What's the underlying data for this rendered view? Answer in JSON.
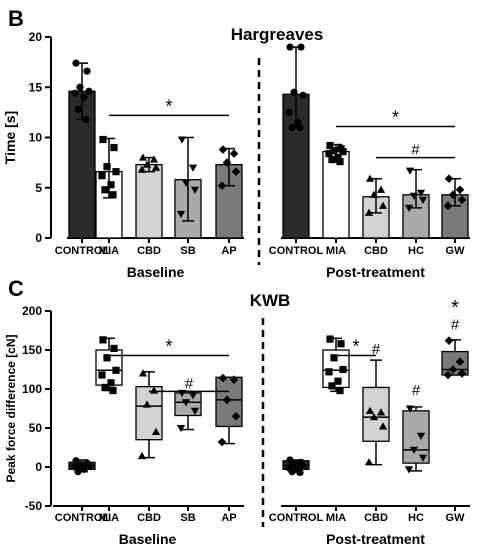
{
  "figure": {
    "panel_b_letter": "B",
    "panel_c_letter": "C"
  },
  "chart_data": [
    {
      "type": "bar",
      "title": "Hargreaves",
      "ylabel": "Time [s]",
      "ylim": [
        0,
        20
      ],
      "yticks": [
        0,
        5,
        10,
        15,
        20
      ],
      "groups": [
        {
          "label": "Baseline",
          "categories": [
            "CONTROL",
            "MIA",
            "CBD",
            "SB",
            "AP"
          ]
        },
        {
          "label": "Post-treatment",
          "categories": [
            "CONTROL",
            "MIA",
            "CBD",
            "HC",
            "GW"
          ]
        }
      ],
      "series": [
        {
          "group": "Baseline",
          "category": "CONTROL",
          "mean": 14.6,
          "sd_low": 11.8,
          "sd_high": 17.4,
          "fill": "#2b2b2b",
          "marker": "circle",
          "points": [
            17.4,
            16.6,
            15.0,
            14.6,
            14.4,
            14.0,
            12.8,
            11.8
          ]
        },
        {
          "group": "Baseline",
          "category": "MIA",
          "mean": 6.6,
          "sd_low": 4.0,
          "sd_high": 9.9,
          "fill": "#ffffff",
          "marker": "square",
          "points": [
            9.8,
            9.0,
            7.1,
            6.6,
            6.2,
            5.3,
            4.8,
            4.3
          ]
        },
        {
          "group": "Baseline",
          "category": "CBD",
          "mean": 7.3,
          "sd_low": 6.6,
          "sd_high": 8.0,
          "fill": "#d3d3d3",
          "marker": "triangle",
          "points": [
            8.0,
            7.8,
            7.3,
            7.0,
            6.8
          ]
        },
        {
          "group": "Baseline",
          "category": "SB",
          "mean": 5.8,
          "sd_low": 1.7,
          "sd_high": 10.0,
          "fill": "#a9a9a9",
          "marker": "triangle-down",
          "points": [
            9.8,
            7.0,
            5.5,
            4.8,
            2.4
          ]
        },
        {
          "group": "Baseline",
          "category": "AP",
          "mean": 7.3,
          "sd_low": 5.2,
          "sd_high": 8.9,
          "fill": "#7a7a7a",
          "marker": "diamond",
          "points": [
            8.8,
            8.4,
            7.5,
            6.6,
            5.2
          ]
        },
        {
          "group": "Post-treatment",
          "category": "CONTROL",
          "mean": 14.3,
          "sd_low": 11.0,
          "sd_high": 19.0,
          "fill": "#2b2b2b",
          "marker": "circle",
          "points": [
            19.0,
            19.0,
            14.5,
            14.2,
            12.5,
            11.5,
            11.0,
            11.0
          ]
        },
        {
          "group": "Post-treatment",
          "category": "MIA",
          "mean": 8.6,
          "sd_low": 7.6,
          "sd_high": 9.3,
          "fill": "#ffffff",
          "marker": "square",
          "points": [
            9.2,
            8.9,
            8.7,
            8.6,
            8.4,
            8.0,
            7.8,
            7.6
          ]
        },
        {
          "group": "Post-treatment",
          "category": "CBD",
          "mean": 4.1,
          "sd_low": 2.5,
          "sd_high": 5.9,
          "fill": "#d3d3d3",
          "marker": "triangle",
          "points": [
            5.9,
            4.8,
            4.3,
            3.2,
            2.5
          ]
        },
        {
          "group": "Post-treatment",
          "category": "HC",
          "mean": 4.3,
          "sd_low": 3.0,
          "sd_high": 6.8,
          "fill": "#a9a9a9",
          "marker": "triangle-down",
          "points": [
            6.7,
            4.5,
            4.2,
            3.8,
            3.0
          ]
        },
        {
          "group": "Post-treatment",
          "category": "GW",
          "mean": 4.3,
          "sd_low": 3.2,
          "sd_high": 5.9,
          "fill": "#7a7a7a",
          "marker": "diamond",
          "points": [
            5.9,
            4.8,
            4.3,
            3.8,
            3.2
          ]
        }
      ],
      "annotations": [
        {
          "text": "*",
          "y": 12.2,
          "from": "Baseline MIA",
          "to": "Baseline AP"
        },
        {
          "text": "*",
          "y": 11.1,
          "from": "Post-treatment MIA",
          "to": "Post-treatment GW"
        },
        {
          "text": "#",
          "y": 8.0,
          "from": "Post-treatment CBD",
          "to": "Post-treatment GW"
        }
      ]
    },
    {
      "type": "box",
      "title": "KWB",
      "ylabel": "Peak force difference [cN]",
      "ylim": [
        -50,
        200
      ],
      "yticks": [
        -50,
        0,
        50,
        100,
        150,
        200
      ],
      "groups": [
        {
          "label": "Baseline",
          "categories": [
            "CONTROL",
            "MIA",
            "CBD",
            "SB",
            "AP"
          ]
        },
        {
          "label": "Post-treatment",
          "categories": [
            "CONTROL",
            "MIA",
            "CBD",
            "HC",
            "GW"
          ]
        }
      ],
      "series": [
        {
          "group": "Baseline",
          "category": "CONTROL",
          "min": -6,
          "q1": -3,
          "median": 2,
          "q3": 6,
          "max": 9,
          "fill": "#2b2b2b",
          "marker": "circle",
          "points": [
            8,
            5,
            3,
            1,
            0,
            -3,
            -6
          ]
        },
        {
          "group": "Baseline",
          "category": "MIA",
          "min": 98,
          "q1": 105,
          "median": 124,
          "q3": 150,
          "max": 165,
          "fill": "#ffffff",
          "marker": "square",
          "points": [
            163,
            152,
            140,
            124,
            118,
            108,
            102,
            98
          ]
        },
        {
          "group": "Baseline",
          "category": "CBD",
          "min": 12,
          "q1": 35,
          "median": 78,
          "q3": 103,
          "max": 122,
          "fill": "#d3d3d3",
          "marker": "triangle",
          "points": [
            120,
            98,
            80,
            45,
            14
          ]
        },
        {
          "group": "Baseline",
          "category": "SB",
          "min": 48,
          "q1": 66,
          "median": 83,
          "q3": 95,
          "max": 97,
          "fill": "#a9a9a9",
          "marker": "triangle-down",
          "points": [
            95,
            92,
            83,
            72,
            50
          ]
        },
        {
          "group": "Baseline",
          "category": "AP",
          "min": 30,
          "q1": 52,
          "median": 86,
          "q3": 115,
          "max": 115,
          "fill": "#7a7a7a",
          "marker": "diamond",
          "points": [
            114,
            112,
            86,
            65,
            32
          ]
        },
        {
          "group": "Post-treatment",
          "category": "CONTROL",
          "min": -7,
          "q1": -3,
          "median": 2,
          "q3": 8,
          "max": 9,
          "fill": "#2b2b2b",
          "marker": "circle",
          "points": [
            9,
            6,
            3,
            1,
            -1,
            -4,
            -6,
            -7
          ]
        },
        {
          "group": "Post-treatment",
          "category": "MIA",
          "min": 97,
          "q1": 102,
          "median": 124,
          "q3": 150,
          "max": 165,
          "fill": "#ffffff",
          "marker": "square",
          "points": [
            164,
            158,
            140,
            125,
            122,
            110,
            104,
            98
          ]
        },
        {
          "group": "Post-treatment",
          "category": "CBD",
          "min": 3,
          "q1": 33,
          "median": 64,
          "q3": 102,
          "max": 137,
          "fill": "#d3d3d3",
          "marker": "triangle",
          "points": [
            72,
            70,
            64,
            52,
            6
          ]
        },
        {
          "group": "Post-treatment",
          "category": "HC",
          "min": -5,
          "q1": 5,
          "median": 22,
          "q3": 72,
          "max": 77,
          "fill": "#a9a9a9",
          "marker": "triangle-down",
          "points": [
            75,
            40,
            22,
            12,
            -3
          ]
        },
        {
          "group": "Post-treatment",
          "category": "GW",
          "min": 118,
          "q1": 118,
          "median": 125,
          "q3": 148,
          "max": 163,
          "fill": "#7a7a7a",
          "marker": "diamond",
          "points": [
            162,
            135,
            125,
            120,
            118
          ]
        }
      ],
      "annotations": [
        {
          "text": "*",
          "y": 143,
          "from": "Baseline MIA",
          "to": "Baseline AP"
        },
        {
          "text": "#",
          "y": 97,
          "from": "Baseline CBD",
          "to": "Baseline AP"
        },
        {
          "text": "*",
          "y": 143,
          "from": "Post-treatment MIA",
          "to": "Post-treatment CBD"
        },
        {
          "text": "#",
          "category": "Post-treatment CBD",
          "y": 145
        },
        {
          "text": "#",
          "category": "Post-treatment HC",
          "y": 92
        },
        {
          "text": "#",
          "category": "Post-treatment GW",
          "y": 176
        },
        {
          "text": "*",
          "category": "Post-treatment GW",
          "y": 196
        }
      ]
    }
  ]
}
